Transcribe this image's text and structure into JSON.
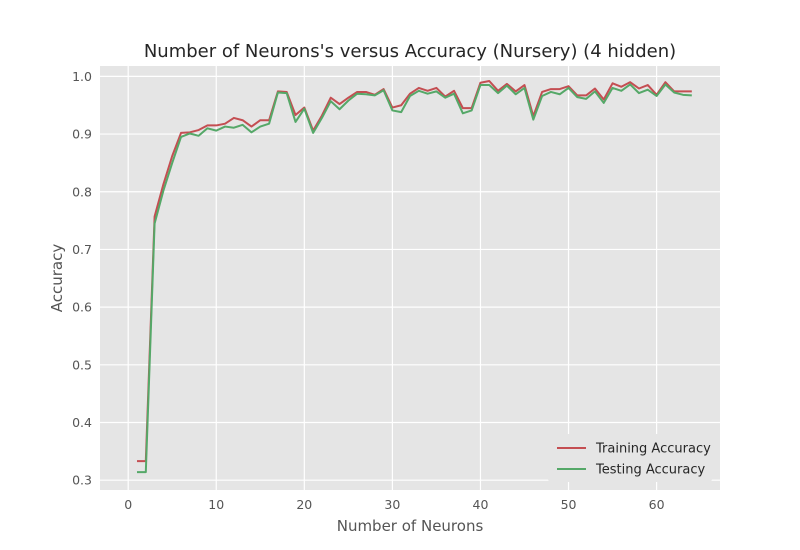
{
  "chart_data": {
    "type": "line",
    "title": "Number of Neurons's versus Accuracy (Nursery) (4 hidden)",
    "xlabel": "Number of Neurons",
    "ylabel": "Accuracy",
    "xlim": [
      -3.2,
      67.2
    ],
    "ylim": [
      0.283,
      1.018
    ],
    "xticks": [
      0,
      10,
      20,
      30,
      40,
      50,
      60
    ],
    "yticks": [
      0.3,
      0.4,
      0.5,
      0.6,
      0.7,
      0.8,
      0.9,
      1.0
    ],
    "ytick_labels": [
      "0.3",
      "0.4",
      "0.5",
      "0.6",
      "0.7",
      "0.8",
      "0.9",
      "1.0"
    ],
    "grid": true,
    "legend_position": "lower-right",
    "x": [
      1,
      2,
      3,
      4,
      5,
      6,
      7,
      8,
      9,
      10,
      11,
      12,
      13,
      14,
      15,
      16,
      17,
      18,
      19,
      20,
      21,
      22,
      23,
      24,
      25,
      26,
      27,
      28,
      29,
      30,
      31,
      32,
      33,
      34,
      35,
      36,
      37,
      38,
      39,
      40,
      41,
      42,
      43,
      44,
      45,
      46,
      47,
      48,
      49,
      50,
      51,
      52,
      53,
      54,
      55,
      56,
      57,
      58,
      59,
      60,
      61,
      62,
      63,
      64
    ],
    "series": [
      {
        "name": "Training Accuracy",
        "color": "#c44e52",
        "values": [
          0.333,
          0.333,
          0.757,
          0.813,
          0.862,
          0.902,
          0.903,
          0.907,
          0.915,
          0.915,
          0.918,
          0.928,
          0.924,
          0.913,
          0.924,
          0.924,
          0.974,
          0.973,
          0.933,
          0.946,
          0.906,
          0.932,
          0.963,
          0.952,
          0.963,
          0.973,
          0.973,
          0.968,
          0.978,
          0.946,
          0.95,
          0.97,
          0.98,
          0.975,
          0.98,
          0.965,
          0.975,
          0.945,
          0.945,
          0.989,
          0.992,
          0.975,
          0.987,
          0.974,
          0.985,
          0.931,
          0.973,
          0.978,
          0.978,
          0.983,
          0.967,
          0.967,
          0.979,
          0.96,
          0.988,
          0.982,
          0.99,
          0.979,
          0.985,
          0.968,
          0.99,
          0.974,
          0.974,
          0.974
        ]
      },
      {
        "name": "Testing Accuracy",
        "color": "#55a868",
        "values": [
          0.314,
          0.314,
          0.745,
          0.802,
          0.85,
          0.895,
          0.901,
          0.897,
          0.91,
          0.906,
          0.913,
          0.911,
          0.916,
          0.903,
          0.913,
          0.918,
          0.972,
          0.971,
          0.921,
          0.944,
          0.902,
          0.928,
          0.957,
          0.943,
          0.958,
          0.97,
          0.969,
          0.967,
          0.976,
          0.941,
          0.938,
          0.966,
          0.975,
          0.97,
          0.974,
          0.963,
          0.97,
          0.936,
          0.941,
          0.985,
          0.985,
          0.971,
          0.984,
          0.969,
          0.98,
          0.925,
          0.966,
          0.973,
          0.969,
          0.98,
          0.964,
          0.961,
          0.974,
          0.954,
          0.98,
          0.975,
          0.986,
          0.971,
          0.977,
          0.966,
          0.986,
          0.972,
          0.968,
          0.967
        ]
      }
    ]
  }
}
